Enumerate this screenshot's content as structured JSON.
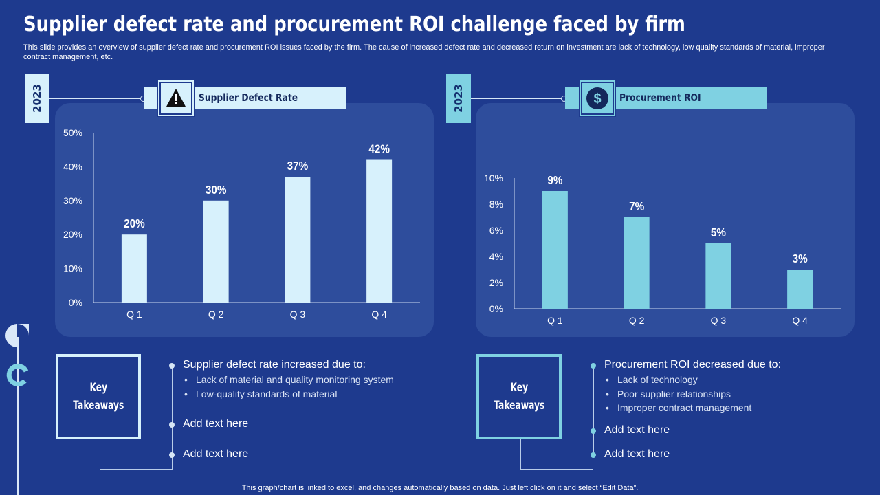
{
  "title": "Supplier defect rate and procurement ROI challenge faced by firm",
  "subtitle": "This slide provides an overview of supplier defect rate and procurement ROI issues faced by the firm. The cause of increased defect rate and decreased return on investment are lack of technology, low quality standards of material, improper contract management, etc.",
  "colors": {
    "background": "#1e3a8e",
    "panel": "#2e4d9c",
    "light_bar": "#d7f1fc",
    "cyan_bar": "#7fd1e2"
  },
  "left": {
    "year": "2023",
    "header_label": "Supplier Defect Rate",
    "header_icon": "warning-icon"
  },
  "right": {
    "year": "2023",
    "header_label": "Procurement ROI",
    "header_icon": "dollar-icon"
  },
  "chart_data": [
    {
      "type": "bar",
      "title": "Supplier Defect Rate",
      "categories": [
        "Q 1",
        "Q 2",
        "Q 3",
        "Q 4"
      ],
      "values": [
        20,
        30,
        37,
        42
      ],
      "data_labels": [
        "20%",
        "30%",
        "37%",
        "42%"
      ],
      "ylim": [
        0,
        50
      ],
      "yticks": [
        "0%",
        "10%",
        "20%",
        "30%",
        "40%",
        "50%"
      ],
      "color": "#d7f1fc",
      "xlabel": "",
      "ylabel": ""
    },
    {
      "type": "bar",
      "title": "Procurement ROI",
      "categories": [
        "Q 1",
        "Q 2",
        "Q 3",
        "Q 4"
      ],
      "values": [
        9,
        7,
        5,
        3
      ],
      "data_labels": [
        "9%",
        "7%",
        "5%",
        "3%"
      ],
      "ylim": [
        0,
        10
      ],
      "yticks": [
        "0%",
        "2%",
        "4%",
        "6%",
        "8%",
        "10%"
      ],
      "color": "#7fd1e2",
      "xlabel": "",
      "ylabel": ""
    }
  ],
  "takeaways": [
    {
      "box_line1": "Key",
      "box_line2": "Takeaways",
      "heading": "Supplier defect rate increased due to:",
      "bullets": [
        "Lack of material and quality monitoring system",
        "Low-quality standards of material"
      ],
      "add_text_1": "Add text here",
      "add_text_2": "Add text here"
    },
    {
      "box_line1": "Key",
      "box_line2": "Takeaways",
      "heading": "Procurement ROI decreased due to:",
      "bullets": [
        "Lack of technology",
        "Poor supplier relationships",
        "Improper contract management"
      ],
      "add_text_1": "Add text here",
      "add_text_2": "Add text here"
    }
  ],
  "footer": "This graph/chart is linked to excel,  and changes automatically based on data. Just left click on it and select “Edit Data”."
}
